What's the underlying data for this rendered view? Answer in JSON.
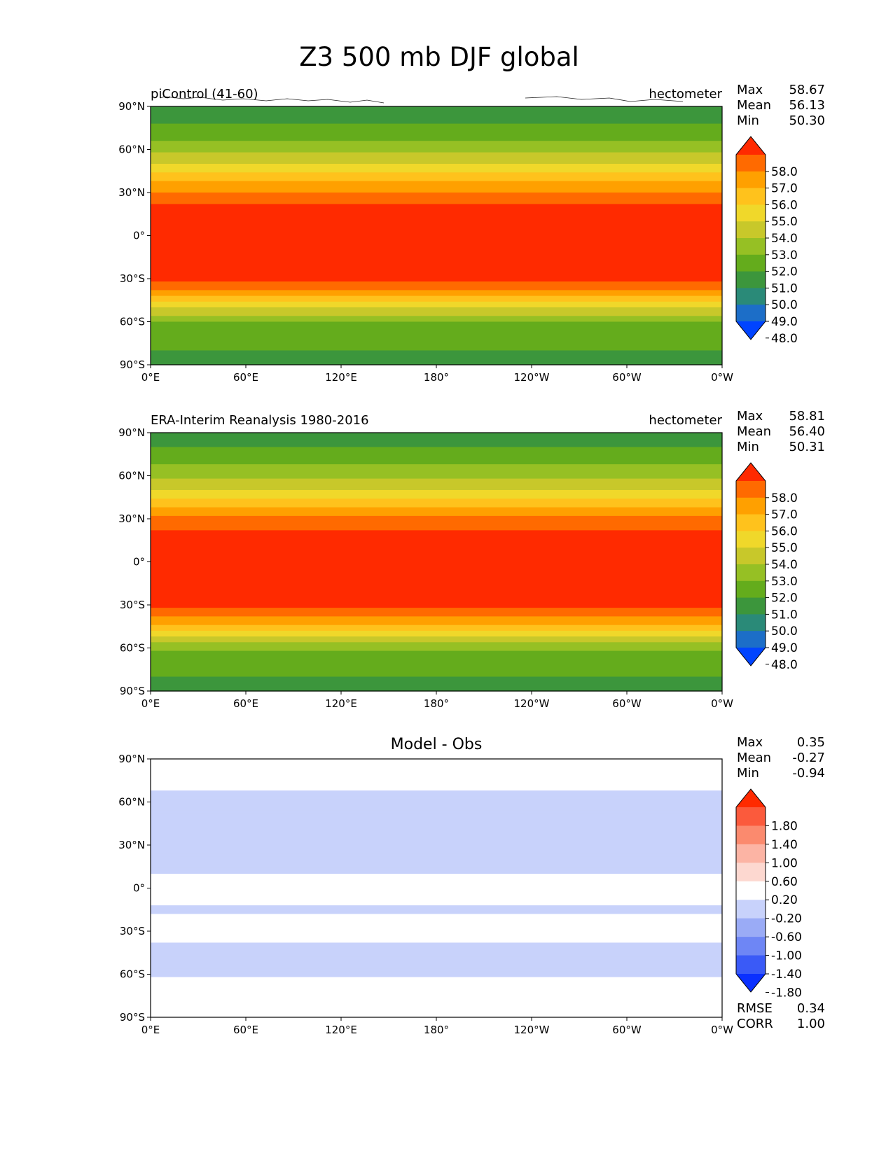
{
  "title": "Z3 500 mb DJF global",
  "chart_data": [
    {
      "type": "heatmap",
      "map_kind": "filled-contour",
      "subtitle": "piControl (41-60)",
      "units": "hectometer",
      "stats": {
        "labels": [
          "Max",
          "Mean",
          "Min"
        ],
        "values": [
          "58.67",
          "56.13",
          "50.30"
        ]
      },
      "x_ticks": [
        "0°E",
        "60°E",
        "120°E",
        "180°",
        "120°W",
        "60°W",
        "0°W"
      ],
      "y_ticks": [
        "90°N",
        "60°N",
        "30°N",
        "0°",
        "30°S",
        "60°S",
        "90°S"
      ],
      "xlim": [
        0,
        360
      ],
      "ylim": [
        -90,
        90
      ],
      "colorbar": {
        "ticks": [
          "58.0",
          "57.0",
          "56.0",
          "55.0",
          "54.0",
          "53.0",
          "52.0",
          "51.0",
          "50.0",
          "49.0",
          "48.0"
        ],
        "extend": "both",
        "colors": [
          "#ff2a00",
          "#ff6a00",
          "#ffa000",
          "#ffc21c",
          "#f0d82a",
          "#c8c82a",
          "#96c024",
          "#64ac1c",
          "#3c963c",
          "#2a8a78",
          "#1c6ec8",
          "#0044ff"
        ]
      },
      "zonal_profile": [
        {
          "lat": 90,
          "level": 50.3
        },
        {
          "lat": 75,
          "level": 51.2
        },
        {
          "lat": 60,
          "level": 52.6
        },
        {
          "lat": 50,
          "level": 54.0
        },
        {
          "lat": 40,
          "level": 55.6
        },
        {
          "lat": 30,
          "level": 57.0
        },
        {
          "lat": 20,
          "level": 58.2
        },
        {
          "lat": 0,
          "level": 58.6
        },
        {
          "lat": -30,
          "level": 58.3
        },
        {
          "lat": -40,
          "level": 56.5
        },
        {
          "lat": -50,
          "level": 54.0
        },
        {
          "lat": -60,
          "level": 52.0
        },
        {
          "lat": -70,
          "level": 51.2
        },
        {
          "lat": -80,
          "level": 51.0
        },
        {
          "lat": -90,
          "level": 50.6
        }
      ]
    },
    {
      "type": "heatmap",
      "map_kind": "filled-contour",
      "subtitle": "ERA-Interim Reanalysis 1980-2016",
      "units": "hectometer",
      "stats": {
        "labels": [
          "Max",
          "Mean",
          "Min"
        ],
        "values": [
          "58.81",
          "56.40",
          "50.31"
        ]
      },
      "x_ticks": [
        "0°E",
        "60°E",
        "120°E",
        "180°",
        "120°W",
        "60°W",
        "0°W"
      ],
      "y_ticks": [
        "90°N",
        "60°N",
        "30°N",
        "0°",
        "30°S",
        "60°S",
        "90°S"
      ],
      "xlim": [
        0,
        360
      ],
      "ylim": [
        -90,
        90
      ],
      "colorbar": {
        "ticks": [
          "58.0",
          "57.0",
          "56.0",
          "55.0",
          "54.0",
          "53.0",
          "52.0",
          "51.0",
          "50.0",
          "49.0",
          "48.0"
        ],
        "extend": "both",
        "colors": [
          "#ff2a00",
          "#ff6a00",
          "#ffa000",
          "#ffc21c",
          "#f0d82a",
          "#c8c82a",
          "#96c024",
          "#64ac1c",
          "#3c963c",
          "#2a8a78",
          "#1c6ec8",
          "#0044ff"
        ]
      },
      "zonal_profile": [
        {
          "lat": 90,
          "level": 50.4
        },
        {
          "lat": 75,
          "level": 51.3
        },
        {
          "lat": 60,
          "level": 52.7
        },
        {
          "lat": 50,
          "level": 54.1
        },
        {
          "lat": 40,
          "level": 55.7
        },
        {
          "lat": 30,
          "level": 57.2
        },
        {
          "lat": 20,
          "level": 58.3
        },
        {
          "lat": 0,
          "level": 58.7
        },
        {
          "lat": -30,
          "level": 58.4
        },
        {
          "lat": -40,
          "level": 56.8
        },
        {
          "lat": -50,
          "level": 54.3
        },
        {
          "lat": -60,
          "level": 52.2
        },
        {
          "lat": -70,
          "level": 51.4
        },
        {
          "lat": -80,
          "level": 51.0
        },
        {
          "lat": -90,
          "level": 50.6
        }
      ]
    },
    {
      "type": "heatmap",
      "map_kind": "filled-contour",
      "title": "Model - Obs",
      "stats": {
        "labels": [
          "Max",
          "Mean",
          "Min"
        ],
        "values": [
          "0.35",
          "-0.27",
          "-0.94"
        ]
      },
      "bottom_stats": {
        "labels": [
          "RMSE",
          "CORR"
        ],
        "values": [
          "0.34",
          "1.00"
        ]
      },
      "x_ticks": [
        "0°E",
        "60°E",
        "120°E",
        "180°",
        "120°W",
        "60°W",
        "0°W"
      ],
      "y_ticks": [
        "90°N",
        "60°N",
        "30°N",
        "0°",
        "30°S",
        "60°S",
        "90°S"
      ],
      "xlim": [
        0,
        360
      ],
      "ylim": [
        -90,
        90
      ],
      "colorbar": {
        "ticks": [
          "1.80",
          "1.40",
          "1.00",
          "0.60",
          "0.20",
          "-0.20",
          "-0.60",
          "-1.00",
          "-1.40",
          "-1.80"
        ],
        "extend": "both",
        "colors": [
          "#ff2a00",
          "#fb5a3c",
          "#fb8a6e",
          "#fcb4a4",
          "#fdd8d0",
          "#ffffff",
          "#c8d2fb",
          "#9aabf6",
          "#6e86f5",
          "#3a5af7",
          "#0a30ff"
        ]
      },
      "zonal_profile": [
        {
          "lat": 90,
          "level": 0.0
        },
        {
          "lat": 75,
          "level": -0.1
        },
        {
          "lat": 60,
          "level": -0.3
        },
        {
          "lat": 45,
          "level": -0.6
        },
        {
          "lat": 30,
          "level": -0.35
        },
        {
          "lat": 15,
          "level": -0.3
        },
        {
          "lat": 0,
          "level": 0.0
        },
        {
          "lat": -15,
          "level": -0.25
        },
        {
          "lat": -30,
          "level": 0.0
        },
        {
          "lat": -45,
          "level": -0.35
        },
        {
          "lat": -55,
          "level": -0.4
        },
        {
          "lat": -70,
          "level": 0.0
        },
        {
          "lat": -90,
          "level": 0.0
        }
      ]
    }
  ]
}
